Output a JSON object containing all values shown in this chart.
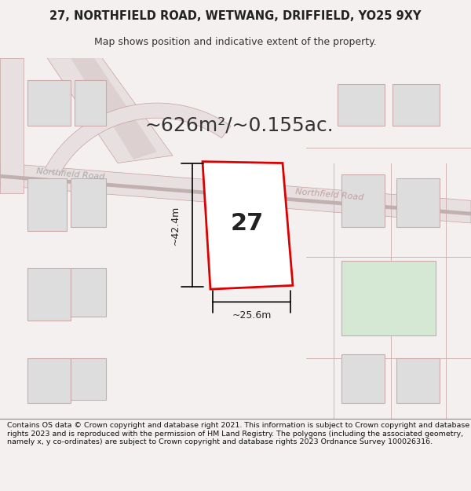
{
  "title_line1": "27, NORTHFIELD ROAD, WETWANG, DRIFFIELD, YO25 9XY",
  "title_line2": "Map shows position and indicative extent of the property.",
  "area_text": "~626m²/~0.155ac.",
  "label_27": "27",
  "dim_height": "~42.4m",
  "dim_width": "~25.6m",
  "road_label_left": "Northfield Road",
  "road_label_right": "Northfield Road",
  "footer_text": "Contains OS data © Crown copyright and database right 2021. This information is subject to Crown copyright and database rights 2023 and is reproduced with the permission of HM Land Registry. The polygons (including the associated geometry, namely x, y co-ordinates) are subject to Crown copyright and database rights 2023 Ordnance Survey 100026316.",
  "bg_color": "#f5f0f0",
  "map_bg": "#ffffff",
  "road_color": "#ccaaaa",
  "building_fill": "#dddddd",
  "building_outline": "#ccaaaa",
  "plot_fill": "#ffffff",
  "plot_outline": "#dd0000",
  "green_fill": "#d4e8d4",
  "footer_bg": "#ffffff"
}
